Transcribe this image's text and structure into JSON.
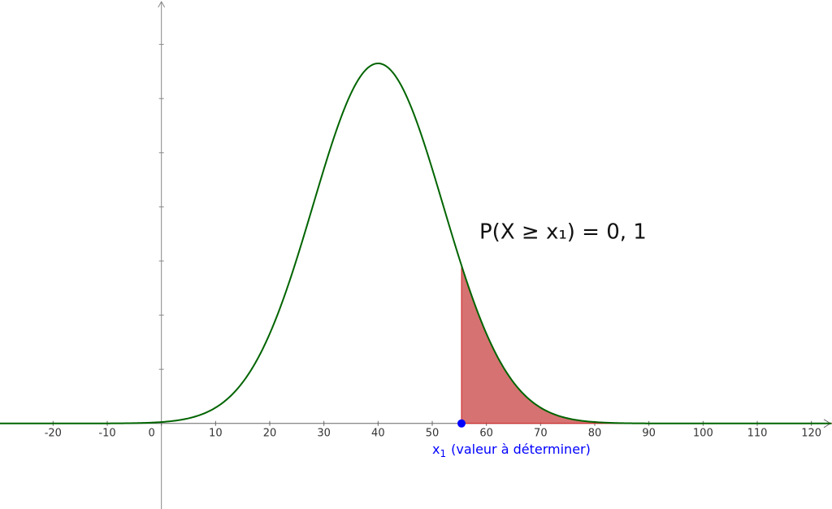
{
  "chart_data": {
    "type": "normal-curve",
    "mean": 40,
    "sd": 12,
    "x1": 55.4,
    "xlim": [
      -29.8,
      123.8
    ],
    "xticks": [
      -20,
      -10,
      0,
      10,
      20,
      30,
      40,
      50,
      60,
      70,
      80,
      90,
      100,
      110,
      120
    ],
    "ylim": [
      -0.0079,
      0.0391
    ],
    "yticks": [
      0.005,
      0.01,
      0.015,
      0.02,
      0.025,
      0.03,
      0.035
    ],
    "curve_color": "#006400",
    "area_color": "#d46a6a",
    "point_color": "#0000ff",
    "annotation": "P(X ≥ x₁) = 0, 1",
    "point_label": "x",
    "point_label_sub": "1",
    "point_label_text": "(valeur à déterminer)"
  }
}
